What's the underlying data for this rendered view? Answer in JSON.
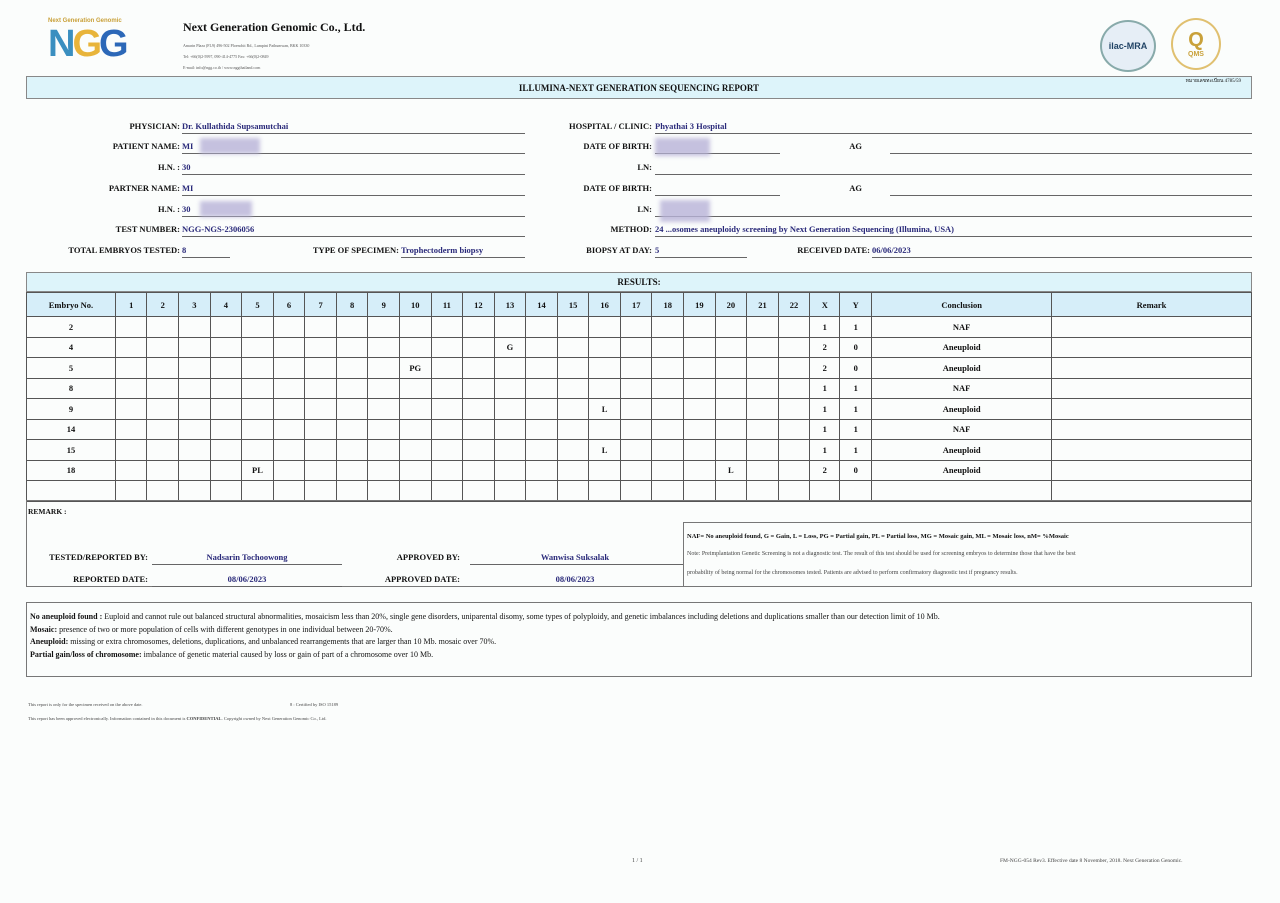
{
  "header": {
    "logo_tagline": "Next Generation Genomic",
    "logo_text": "NGG",
    "company": "Next Generation Genomic Co., Ltd.",
    "address_lines": [
      "Amarin Plaza (FL9) 496-502 Ploenchit Rd., Lumpini Pathumwan, BKK 10330",
      "Tel: +66(0)2-5997, 090-414-4775 Fax: +66(0)2-0849",
      "E-mail: info@ngg.co.th / www.nggthailand.com"
    ],
    "badges": [
      "ilac-MRA",
      "Q",
      "QMS"
    ],
    "title": "ILLUMINA-NEXT GENERATION SEQUENCING REPORT",
    "doc_no": "หมายเลขทะเบียน 4785/59"
  },
  "patient": {
    "physician_label": "PHYSICIAN:",
    "physician": "Dr. Kullathida Supsamutchai",
    "hospital_label": "HOSPITAL / CLINIC:",
    "hospital": "Phyathai 3 Hospital",
    "patient_name_label": "PATIENT NAME:",
    "patient_name": "MI",
    "dob_label": "DATE OF BIRTH:",
    "age_label": "AG",
    "hn_label": "H.N. :",
    "hn": "30",
    "ln_label": "LN:",
    "partner_name_label": "PARTNER NAME:",
    "partner_name": "MI",
    "partner_hn": "30",
    "test_number_label": "TEST NUMBER:",
    "test_number": "NGG-NGS-2306056",
    "method_label": "METHOD:",
    "method": "24 ...osomes aneuploidy screening by Next Generation Sequencing (Illumina, USA)",
    "total_embryos_label": "TOTAL EMBRYOS TESTED:",
    "total_embryos": "8",
    "specimen_label": "TYPE OF SPECIMEN:",
    "specimen": "Trophectoderm biopsy",
    "biopsy_day_label": "BIOPSY AT DAY:",
    "biopsy_day": "5",
    "received_label": "RECEIVED DATE:",
    "received": "06/06/2023"
  },
  "results": {
    "title": "RESULTS:",
    "columns": [
      "Embryo No.",
      "1",
      "2",
      "3",
      "4",
      "5",
      "6",
      "7",
      "8",
      "9",
      "10",
      "11",
      "12",
      "13",
      "14",
      "15",
      "16",
      "17",
      "18",
      "19",
      "20",
      "21",
      "22",
      "X",
      "Y",
      "Conclusion",
      "Remark"
    ],
    "rows": [
      {
        "embryo": "2",
        "chr": {},
        "x": "1",
        "y": "1",
        "conclusion": "NAF"
      },
      {
        "embryo": "4",
        "chr": {
          "13": "G"
        },
        "x": "2",
        "y": "0",
        "conclusion": "Aneuploid"
      },
      {
        "embryo": "5",
        "chr": {
          "10": "PG"
        },
        "x": "2",
        "y": "0",
        "conclusion": "Aneuploid"
      },
      {
        "embryo": "8",
        "chr": {},
        "x": "1",
        "y": "1",
        "conclusion": "NAF"
      },
      {
        "embryo": "9",
        "chr": {
          "16": "L"
        },
        "x": "1",
        "y": "1",
        "conclusion": "Aneuploid"
      },
      {
        "embryo": "14",
        "chr": {},
        "x": "1",
        "y": "1",
        "conclusion": "NAF"
      },
      {
        "embryo": "15",
        "chr": {
          "16": "L"
        },
        "x": "1",
        "y": "1",
        "conclusion": "Aneuploid"
      },
      {
        "embryo": "18",
        "chr": {
          "5": "PL",
          "20": "L"
        },
        "x": "2",
        "y": "0",
        "conclusion": "Aneuploid"
      }
    ],
    "remark_label": "REMARK :"
  },
  "signoff": {
    "tested_label": "TESTED/REPORTED BY:",
    "tested_by": "Nadsarin Tochoowong",
    "approved_label": "APPROVED BY:",
    "approved_by": "Wanwisa Suksalak",
    "reported_date_label": "REPORTED DATE:",
    "reported_date": "08/06/2023",
    "approved_date_label": "APPROVED DATE:",
    "approved_date": "08/06/2023"
  },
  "legend": {
    "abbr": "NAF= No aneuploid found, G = Gain, L = Loss, PG = Partial gain, PL = Partial loss, MG = Mosaic gain, ML = Mosaic loss, nM= %Mosaic",
    "note1": "Note: Preimplantation Genetic Screening is not a diagnostic test. The result of this test should be used for screening embryos to  determine those that have the best",
    "note2": "probability of being normal for the chromosomes tested. Patients are advised to perform confirmatory diagnostic test if pregnancy results."
  },
  "definitions": [
    {
      "term": "No aneuploid found :",
      "text": " Euploid and cannot rule out balanced structural abnormalities, mosaicism less than 20%, single gene disorders, uniparental disomy, some types of polyploidy, and genetic imbalances including deletions and duplications smaller than our detection limit of 10 Mb."
    },
    {
      "term": "Mosaic:",
      "text": " presence of two or more population of cells with different genotypes in one individual between 20-70%."
    },
    {
      "term": "Aneuploid:",
      "text": " missing or extra chromosomes, deletions, duplications, and unbalanced rearrangements that are larger than 10 Mb.  mosaic over 70%."
    },
    {
      "term": "Partial gain/loss of chromosome:",
      "text": " imbalance of genetic material caused by loss or gain of part of a chromosome over 10 Mb."
    }
  ],
  "footer": {
    "note1": "This report is only for the specimen received on the above date.",
    "cert": "8 : Certified by ISO 15189",
    "note2_a": "This report has been approved electronically. Information contained in this document is ",
    "note2_b": "CONFIDENTIAL",
    "note2_c": ". Copyright owned by Next Generation Genomic Co., Ltd.",
    "page": "1 / 1",
    "form": "FM-NGG-054 Rev3.  Effective date 8 November, 2018. Next Generation Genomic."
  },
  "colors": {
    "header_band": "#ddf4fa",
    "table_header": "#d6eef9",
    "value_text": "#2a2a7a"
  }
}
